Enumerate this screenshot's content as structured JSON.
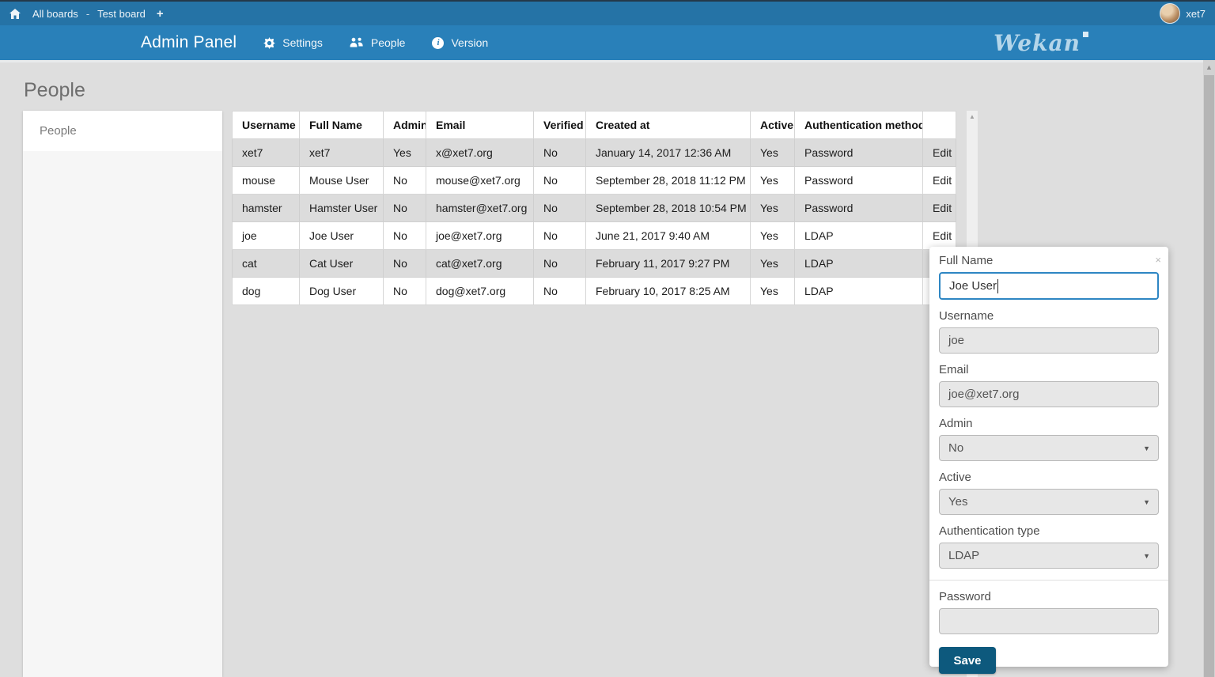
{
  "topbar": {
    "all_boards": "All boards",
    "separator": "-",
    "board_name": "Test board",
    "username": "xet7"
  },
  "adminbar": {
    "title": "Admin Panel",
    "nav": [
      {
        "label": "Settings"
      },
      {
        "label": "People"
      },
      {
        "label": "Version"
      }
    ],
    "logo_text": "Wekan"
  },
  "page": {
    "heading": "People"
  },
  "sidebar": {
    "items": [
      {
        "label": "People",
        "selected": true
      }
    ]
  },
  "table": {
    "headers": [
      "Username",
      "Full Name",
      "Admin",
      "Email",
      "Verified",
      "Created at",
      "Active",
      "Authentication method",
      ""
    ],
    "edit_label": "Edit",
    "rows": [
      [
        "xet7",
        "xet7",
        "Yes",
        "x@xet7.org",
        "No",
        "January 14, 2017 12:36 AM",
        "Yes",
        "Password"
      ],
      [
        "mouse",
        "Mouse User",
        "No",
        "mouse@xet7.org",
        "No",
        "September 28, 2018 11:12 PM",
        "Yes",
        "Password"
      ],
      [
        "hamster",
        "Hamster User",
        "No",
        "hamster@xet7.org",
        "No",
        "September 28, 2018 10:54 PM",
        "Yes",
        "Password"
      ],
      [
        "joe",
        "Joe User",
        "No",
        "joe@xet7.org",
        "No",
        "June 21, 2017 9:40 AM",
        "Yes",
        "LDAP"
      ],
      [
        "cat",
        "Cat User",
        "No",
        "cat@xet7.org",
        "No",
        "February 11, 2017 9:27 PM",
        "Yes",
        "LDAP"
      ],
      [
        "dog",
        "Dog User",
        "No",
        "dog@xet7.org",
        "No",
        "February 10, 2017 8:25 AM",
        "Yes",
        "LDAP"
      ]
    ]
  },
  "popup": {
    "full_name_label": "Full Name",
    "full_name_value": "Joe User",
    "username_label": "Username",
    "username_value": "joe",
    "email_label": "Email",
    "email_value": "joe@xet7.org",
    "admin_label": "Admin",
    "admin_value": "No",
    "active_label": "Active",
    "active_value": "Yes",
    "auth_type_label": "Authentication type",
    "auth_type_value": "LDAP",
    "password_label": "Password",
    "password_value": "",
    "save_label": "Save"
  },
  "icons": {
    "close": "×",
    "plus": "+",
    "dropdown_arrow": "▼",
    "scroll_up_arrow": "▲"
  },
  "colors": {
    "topbar": "#2573a6",
    "adminbar": "#2980b9",
    "focus_border": "#2e86c3",
    "save_button": "#0d597d",
    "row_stripe": "#dcdcdc",
    "page_background": "#dedede"
  }
}
